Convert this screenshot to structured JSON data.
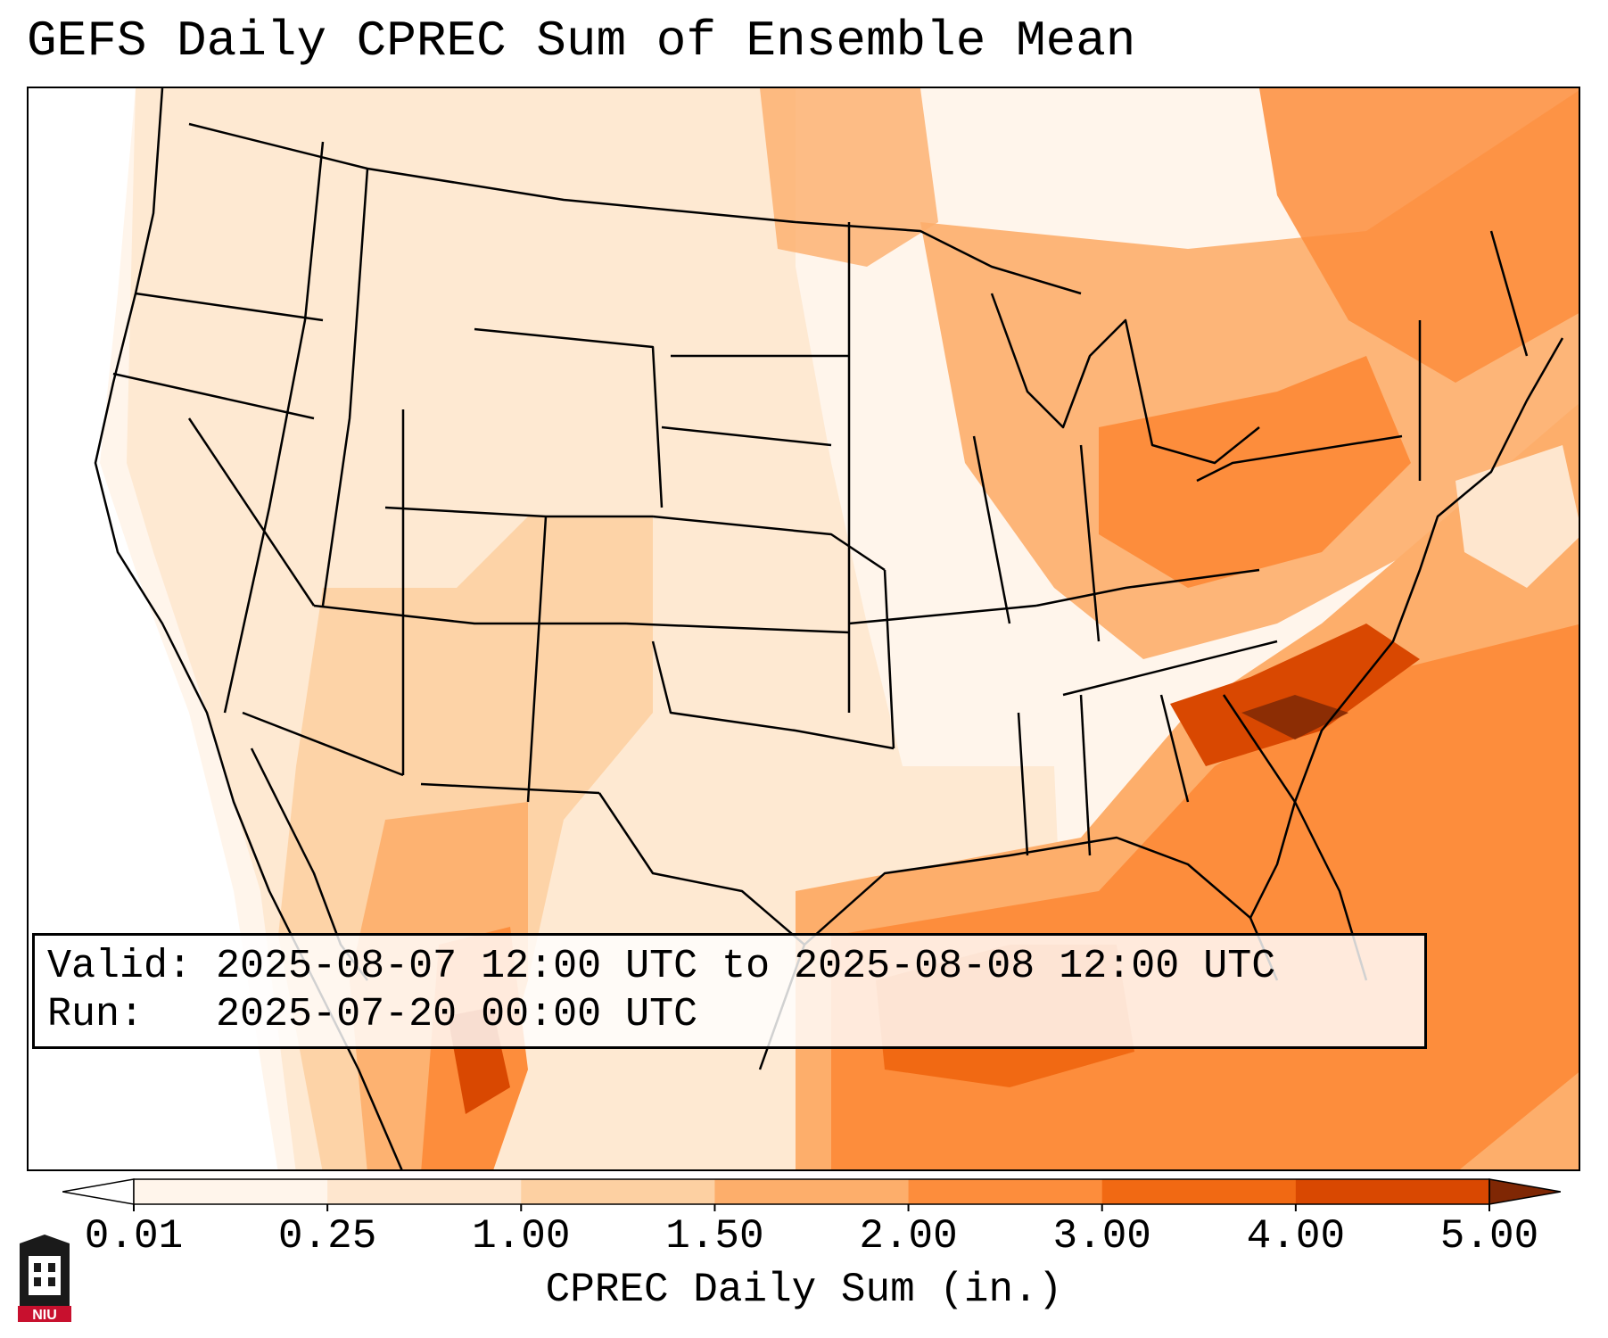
{
  "title": "GEFS Daily CPREC Sum of Ensemble Mean",
  "info": {
    "valid_label": "Valid:",
    "valid_value": "2025-08-07 12:00 UTC to 2025-08-08 12:00 UTC",
    "run_label": "Run:",
    "run_value": "2025-07-20 00:00 UTC"
  },
  "colorbar": {
    "label": "CPREC Daily Sum (in.)",
    "ticks": [
      "0.01",
      "0.25",
      "1.00",
      "1.50",
      "2.00",
      "3.00",
      "4.00",
      "5.00"
    ],
    "colors": [
      "#fff5eb",
      "#fee6ce",
      "#fdd0a2",
      "#fdae6b",
      "#fd8d3c",
      "#f16913",
      "#d94801",
      "#8c2d04"
    ],
    "under_color": "#ffffff",
    "over_color": "#7f2704"
  },
  "logo": {
    "text": "NIU",
    "color": "#c8102e"
  }
}
